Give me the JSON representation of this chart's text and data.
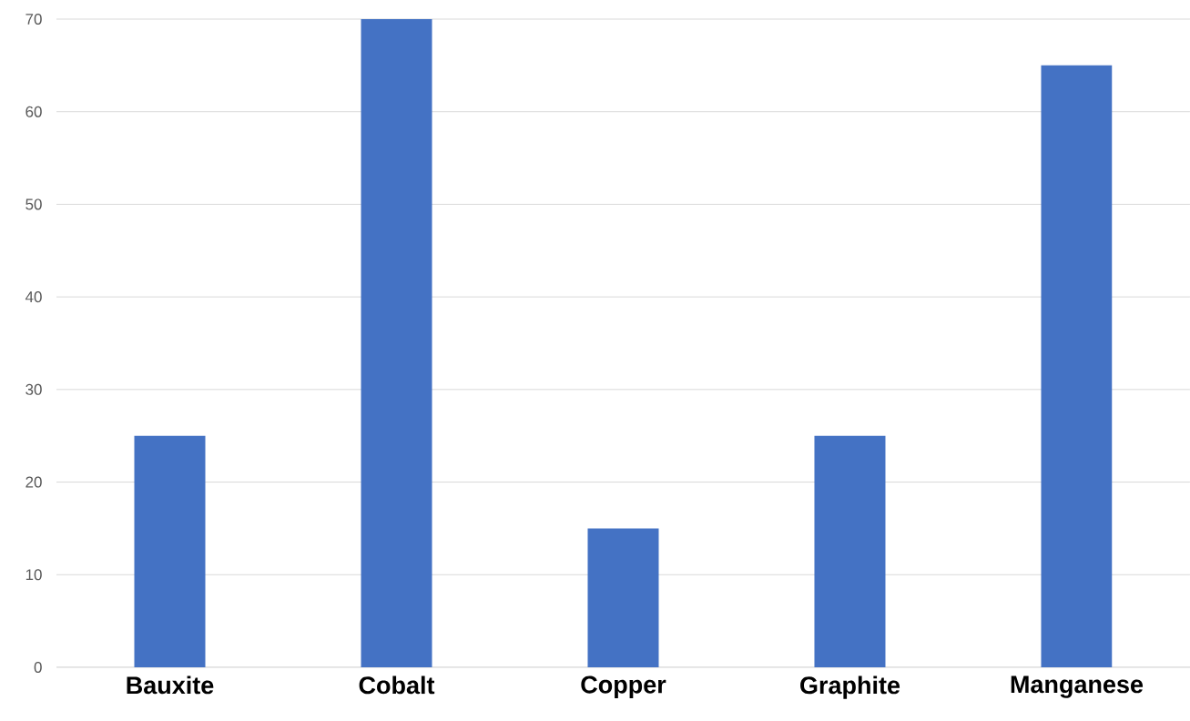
{
  "chart_data": {
    "type": "bar",
    "categories": [
      "Bauxite",
      "Cobalt",
      "Copper",
      "Graphite",
      "Manganese"
    ],
    "values": [
      25,
      70,
      15,
      25,
      65
    ],
    "color": "#4472c4",
    "ylim": [
      0,
      70
    ],
    "yticks": [
      0,
      10,
      20,
      30,
      40,
      50,
      60,
      70
    ],
    "grid": "y"
  }
}
